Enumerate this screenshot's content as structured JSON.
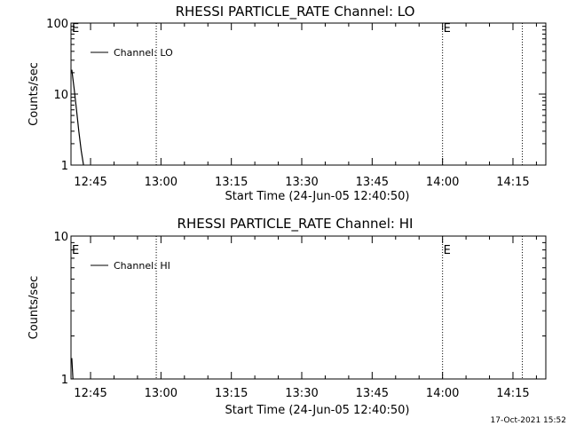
{
  "chart_data": [
    {
      "type": "line",
      "title": "RHESSI PARTICLE_RATE Channel: LO",
      "xlabel": "Start Time (24-Jun-05 12:40:50)",
      "ylabel": "Counts/sec",
      "yscale": "log",
      "ylim": [
        1,
        100
      ],
      "xlim": [
        "12:40:50",
        "14:22"
      ],
      "xticks": [
        "12:45",
        "13:00",
        "13:15",
        "13:30",
        "13:45",
        "14:00",
        "14:15"
      ],
      "yticks": [
        "1",
        "10",
        "100"
      ],
      "legend": {
        "label": "Channel: LO",
        "placement": "top-left"
      },
      "series": [
        {
          "name": "Channel: LO",
          "x": [
            "12:41",
            "12:41:30",
            "12:42",
            "12:42:30",
            "12:43",
            "12:43:30"
          ],
          "y": [
            22,
            12,
            6,
            3,
            1.6,
            1.0
          ]
        }
      ],
      "event_lines": [
        {
          "time": "12:59",
          "label": ""
        },
        {
          "time": "14:00",
          "label": "E"
        },
        {
          "time": "14:17",
          "label": ""
        }
      ],
      "start_marker": "E"
    },
    {
      "type": "line",
      "title": "RHESSI PARTICLE_RATE Channel: HI",
      "xlabel": "Start Time (24-Jun-05 12:40:50)",
      "ylabel": "Counts/sec",
      "yscale": "log",
      "ylim": [
        1,
        10
      ],
      "xlim": [
        "12:40:50",
        "14:22"
      ],
      "xticks": [
        "12:45",
        "13:00",
        "13:15",
        "13:30",
        "13:45",
        "14:00",
        "14:15"
      ],
      "yticks": [
        "1",
        "10"
      ],
      "legend": {
        "label": "Channel: HI",
        "placement": "top-left"
      },
      "series": [
        {
          "name": "Channel: HI",
          "x": [
            "12:41",
            "12:41:15"
          ],
          "y": [
            1.4,
            1.0
          ]
        }
      ],
      "event_lines": [
        {
          "time": "12:59",
          "label": ""
        },
        {
          "time": "14:00",
          "label": "E"
        },
        {
          "time": "14:17",
          "label": ""
        }
      ],
      "start_marker": "E"
    }
  ],
  "footer": {
    "timestamp": "17-Oct-2021 15:52"
  }
}
